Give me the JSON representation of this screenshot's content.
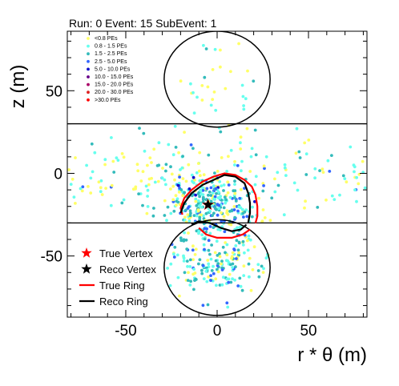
{
  "header": {
    "title": "Run: 0  Event: 15  SubEvent: 1"
  },
  "chart_data": {
    "type": "scatter",
    "title": "Run: 0  Event: 15  SubEvent: 1",
    "xlabel": "r * θ (m)",
    "ylabel": "z (m)",
    "xlim": [
      -82,
      82
    ],
    "ylim": [
      -87,
      86
    ],
    "x_ticks": [
      -50,
      0,
      50
    ],
    "y_ticks": [
      -50,
      0,
      50
    ],
    "x_tick_labels": [
      "-50",
      "0",
      "50"
    ],
    "y_tick_labels": [
      "-50",
      "0",
      "50"
    ],
    "grid": false,
    "pe_legend_placement": "top-left",
    "legend_placement": "bottom-left",
    "detector": {
      "barrel_z": [
        -30,
        30
      ],
      "top_cap": {
        "center": [
          0,
          57
        ],
        "radius": 29
      },
      "bottom_cap": {
        "center": [
          0,
          -57
        ],
        "radius": 29
      }
    },
    "pe_bins": [
      {
        "label": "<0.8 PEs",
        "color": "#ffff66"
      },
      {
        "label": "0.8 - 1.5 PEs",
        "color": "#66ffee"
      },
      {
        "label": "1.5 - 2.5 PEs",
        "color": "#33bbbb"
      },
      {
        "label": "2.5 - 5.0 PEs",
        "color": "#3366ff"
      },
      {
        "label": "5.0 - 10.0 PEs",
        "color": "#1111cc"
      },
      {
        "label": "10.0 - 15.0 PEs",
        "color": "#660088"
      },
      {
        "label": "15.0 - 20.0 PEs",
        "color": "#aa0066"
      },
      {
        "label": "20.0 - 30.0 PEs",
        "color": "#dd2222"
      },
      {
        "label": ">30.0 PEs",
        "color": "#ff0000"
      }
    ],
    "true_vertex": {
      "label": "True Vertex",
      "x": -5,
      "z": -19,
      "color": "#ff0000"
    },
    "reco_vertex": {
      "label": "Reco Vertex",
      "x": -5,
      "z": -19,
      "color": "#000000"
    },
    "true_ring": {
      "label": "True Ring",
      "color": "#ff0000",
      "barrel_curve": [
        [
          -19,
          -25
        ],
        [
          -20,
          -21
        ],
        [
          -18,
          -15
        ],
        [
          -14,
          -10
        ],
        [
          -8,
          -5
        ],
        [
          -2,
          -2
        ],
        [
          4,
          0
        ],
        [
          10,
          -1
        ],
        [
          15,
          -4
        ],
        [
          19,
          -8
        ],
        [
          21,
          -13
        ],
        [
          22,
          -20
        ],
        [
          22,
          -26
        ],
        [
          21,
          -30
        ]
      ],
      "cap_curve": [
        [
          -10,
          -33
        ],
        [
          -6,
          -37
        ],
        [
          0,
          -39
        ],
        [
          8,
          -39
        ],
        [
          14,
          -37
        ],
        [
          18,
          -34
        ]
      ]
    },
    "reco_ring": {
      "label": "Reco Ring",
      "color": "#000000",
      "barrel_curve": [
        [
          -20,
          -24
        ],
        [
          -18,
          -18
        ],
        [
          -14,
          -12
        ],
        [
          -8,
          -7
        ],
        [
          -2,
          -4
        ],
        [
          4,
          -1
        ],
        [
          10,
          -2
        ],
        [
          15,
          -6
        ],
        [
          17,
          -12
        ],
        [
          18,
          -18
        ],
        [
          18,
          -24
        ],
        [
          17,
          -30
        ]
      ],
      "cap_curve": [
        [
          -14,
          -31
        ],
        [
          -10,
          -29
        ],
        [
          -4,
          -30
        ],
        [
          2,
          -33
        ],
        [
          8,
          -35
        ],
        [
          13,
          -34
        ],
        [
          16,
          -31
        ]
      ]
    },
    "hit_regions": [
      {
        "cx": 0,
        "cz": 0,
        "sx": 65,
        "sz": 14,
        "n": 220,
        "pe_weights": [
          0.35,
          0.4,
          0.2,
          0.05,
          0,
          0,
          0,
          0,
          0
        ]
      },
      {
        "cx": -5,
        "cz": -18,
        "sx": 12,
        "sz": 8,
        "n": 260,
        "pe_weights": [
          0.15,
          0.35,
          0.3,
          0.15,
          0.05,
          0,
          0,
          0,
          0
        ]
      },
      {
        "cx": -2,
        "cz": -50,
        "sx": 15,
        "sz": 13,
        "n": 220,
        "pe_weights": [
          0.2,
          0.4,
          0.3,
          0.1,
          0,
          0,
          0,
          0,
          0
        ]
      },
      {
        "cx": 0,
        "cz": 57,
        "sx": 16,
        "sz": 15,
        "n": 35,
        "pe_weights": [
          0.35,
          0.55,
          0.1,
          0,
          0,
          0,
          0,
          0,
          0
        ]
      }
    ]
  },
  "legend": {
    "items": [
      {
        "label": "True Vertex",
        "marker": "star",
        "color": "#ff0000"
      },
      {
        "label": "Reco Vertex",
        "marker": "star",
        "color": "#000000"
      },
      {
        "label": "True Ring",
        "marker": "line",
        "color": "#ff0000"
      },
      {
        "label": "Reco Ring",
        "marker": "line",
        "color": "#000000"
      }
    ]
  }
}
